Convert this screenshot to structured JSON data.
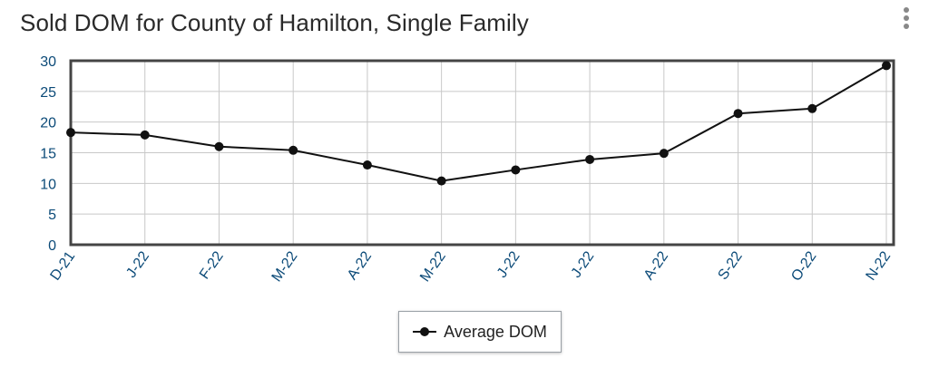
{
  "title": "Sold DOM for County of Hamilton, Single Family",
  "menu": {
    "icon": "kebab-menu-icon"
  },
  "colors": {
    "series": "#111111",
    "axis_text": "#0b4a78",
    "grid": "#c8c8c8",
    "frame": "#444444"
  },
  "chart_data": {
    "type": "line",
    "title": "Sold DOM for County of Hamilton, Single Family",
    "x": [
      "D-21",
      "J-22",
      "F-22",
      "M-22",
      "A-22",
      "M-22",
      "J-22",
      "J-22",
      "A-22",
      "S-22",
      "O-22",
      "N-22"
    ],
    "series": [
      {
        "name": "Average DOM",
        "values": [
          18.3,
          17.9,
          16.0,
          15.4,
          13.0,
          10.4,
          12.2,
          13.9,
          14.9,
          21.4,
          22.2,
          29.2
        ]
      }
    ],
    "ylim": [
      0,
      30
    ],
    "yticks": [
      0,
      5,
      10,
      15,
      20,
      25,
      30
    ],
    "grid": true,
    "legend_position": "bottom-center"
  },
  "legend": {
    "label": "Average DOM"
  }
}
